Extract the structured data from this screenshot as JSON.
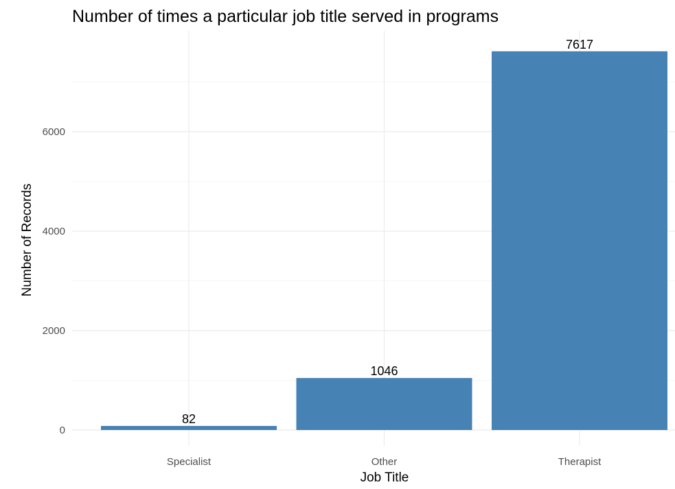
{
  "chart_data": {
    "type": "bar",
    "title": "Number of times a particular job title served in programs",
    "xlabel": "Job Title",
    "ylabel": "Number of Records",
    "categories": [
      "Specialist",
      "Other",
      "Therapist"
    ],
    "values": [
      82,
      1046,
      7617
    ],
    "data_labels": [
      "82",
      "1046",
      "7617"
    ],
    "yticks": [
      0,
      2000,
      4000,
      6000
    ],
    "ytick_labels": [
      "0",
      "2000",
      "4000",
      "6000"
    ],
    "ylim": [
      0,
      8000
    ],
    "grid": true,
    "legend": "none",
    "bar_color": "#4682B4",
    "grid_color": "#EBEBEB"
  }
}
